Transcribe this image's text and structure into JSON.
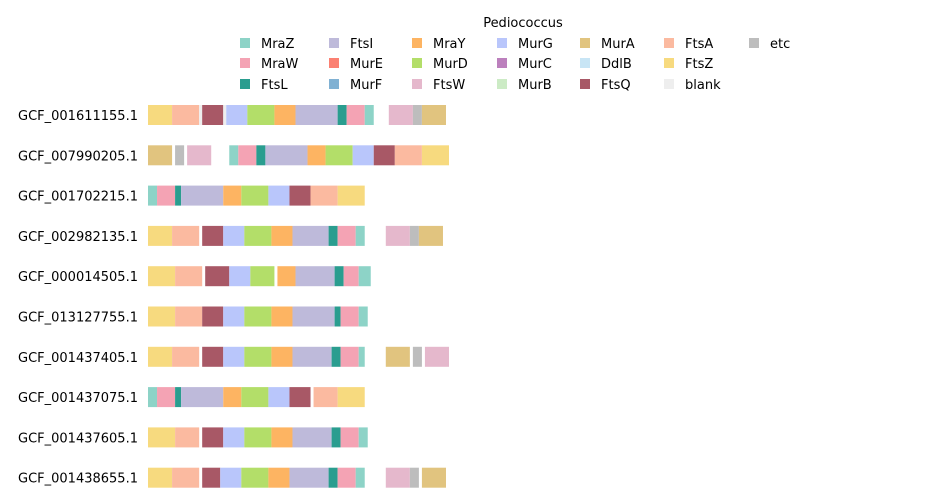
{
  "chart_data": {
    "type": "bar",
    "title": "",
    "xlabel": "",
    "ylabel": "",
    "xlim": [
      0,
      100
    ],
    "legend": {
      "title": "Pediococcus",
      "placement": "top",
      "columns": 7,
      "entries": [
        {
          "name": "MraZ",
          "color": "#8dd3c7"
        },
        {
          "name": "MraW",
          "color": "#f4a3b4"
        },
        {
          "name": "FtsL",
          "color": "#2a9d8f"
        },
        {
          "name": "FtsI",
          "color": "#bebada"
        },
        {
          "name": "MurE",
          "color": "#fb8072"
        },
        {
          "name": "MurF",
          "color": "#80b1d3"
        },
        {
          "name": "MraY",
          "color": "#fdb462"
        },
        {
          "name": "MurD",
          "color": "#b3de69"
        },
        {
          "name": "FtsW",
          "color": "#e5b8cc"
        },
        {
          "name": "MurG",
          "color": "#b9c6fb"
        },
        {
          "name": "MurC",
          "color": "#bc80bd"
        },
        {
          "name": "MurB",
          "color": "#ccebc5"
        },
        {
          "name": "MurA",
          "color": "#e1c47f"
        },
        {
          "name": "DdlB",
          "color": "#c8e5f5"
        },
        {
          "name": "FtsQ",
          "color": "#a85866"
        },
        {
          "name": "FtsA",
          "color": "#fbbaa0"
        },
        {
          "name": "FtsZ",
          "color": "#f7da7f"
        },
        {
          "name": "blank",
          "color": "#eeeeee"
        },
        {
          "name": "etc",
          "color": "#bdbdbd"
        }
      ]
    },
    "series": [
      {
        "name": "GCF_001611155.1",
        "segments": [
          {
            "gene": "FtsZ",
            "start": 0,
            "end": 8
          },
          {
            "gene": "FtsA",
            "start": 8,
            "end": 17
          },
          {
            "gene": "blank",
            "start": 17,
            "end": 18
          },
          {
            "gene": "FtsQ",
            "start": 18,
            "end": 25
          },
          {
            "gene": "blank",
            "start": 25,
            "end": 26
          },
          {
            "gene": "MurG",
            "start": 26,
            "end": 33
          },
          {
            "gene": "MurD",
            "start": 33,
            "end": 42
          },
          {
            "gene": "MraY",
            "start": 42,
            "end": 49
          },
          {
            "gene": "FtsI",
            "start": 49,
            "end": 63
          },
          {
            "gene": "FtsL",
            "start": 63,
            "end": 66
          },
          {
            "gene": "MraW",
            "start": 66,
            "end": 72
          },
          {
            "gene": "MraZ",
            "start": 72,
            "end": 75
          },
          {
            "gene": "FtsW",
            "start": 80,
            "end": 88
          },
          {
            "gene": "etc",
            "start": 88,
            "end": 91
          },
          {
            "gene": "MurA",
            "start": 91,
            "end": 99
          }
        ]
      },
      {
        "name": "GCF_007990205.1",
        "segments": [
          {
            "gene": "MurA",
            "start": 0,
            "end": 8
          },
          {
            "gene": "etc",
            "start": 9,
            "end": 12
          },
          {
            "gene": "FtsW",
            "start": 13,
            "end": 21
          },
          {
            "gene": "MraZ",
            "start": 27,
            "end": 30
          },
          {
            "gene": "MraW",
            "start": 30,
            "end": 36
          },
          {
            "gene": "FtsL",
            "start": 36,
            "end": 39
          },
          {
            "gene": "FtsI",
            "start": 39,
            "end": 53
          },
          {
            "gene": "MraY",
            "start": 53,
            "end": 59
          },
          {
            "gene": "MurD",
            "start": 59,
            "end": 68
          },
          {
            "gene": "MurG",
            "start": 68,
            "end": 75
          },
          {
            "gene": "FtsQ",
            "start": 75,
            "end": 82
          },
          {
            "gene": "FtsA",
            "start": 82,
            "end": 91
          },
          {
            "gene": "FtsZ",
            "start": 91,
            "end": 100
          }
        ]
      },
      {
        "name": "GCF_001702215.1",
        "segments": [
          {
            "gene": "MraZ",
            "start": 0,
            "end": 3
          },
          {
            "gene": "MraW",
            "start": 3,
            "end": 9
          },
          {
            "gene": "FtsL",
            "start": 9,
            "end": 11
          },
          {
            "gene": "FtsI",
            "start": 11,
            "end": 25
          },
          {
            "gene": "MraY",
            "start": 25,
            "end": 31
          },
          {
            "gene": "MurD",
            "start": 31,
            "end": 40
          },
          {
            "gene": "MurG",
            "start": 40,
            "end": 47
          },
          {
            "gene": "FtsQ",
            "start": 47,
            "end": 54
          },
          {
            "gene": "FtsA",
            "start": 54,
            "end": 63
          },
          {
            "gene": "FtsZ",
            "start": 63,
            "end": 72
          }
        ]
      },
      {
        "name": "GCF_002982135.1",
        "segments": [
          {
            "gene": "FtsZ",
            "start": 0,
            "end": 8
          },
          {
            "gene": "FtsA",
            "start": 8,
            "end": 17
          },
          {
            "gene": "FtsQ",
            "start": 18,
            "end": 25
          },
          {
            "gene": "MurG",
            "start": 25,
            "end": 32
          },
          {
            "gene": "MurD",
            "start": 32,
            "end": 41
          },
          {
            "gene": "MraY",
            "start": 41,
            "end": 48
          },
          {
            "gene": "FtsI",
            "start": 48,
            "end": 60
          },
          {
            "gene": "FtsL",
            "start": 60,
            "end": 63
          },
          {
            "gene": "MraW",
            "start": 63,
            "end": 69
          },
          {
            "gene": "MraZ",
            "start": 69,
            "end": 72
          },
          {
            "gene": "FtsW",
            "start": 79,
            "end": 87
          },
          {
            "gene": "etc",
            "start": 87,
            "end": 90
          },
          {
            "gene": "MurA",
            "start": 90,
            "end": 98
          }
        ]
      },
      {
        "name": "GCF_000014505.1",
        "segments": [
          {
            "gene": "FtsZ",
            "start": 0,
            "end": 9
          },
          {
            "gene": "FtsA",
            "start": 9,
            "end": 18
          },
          {
            "gene": "FtsQ",
            "start": 19,
            "end": 27
          },
          {
            "gene": "MurG",
            "start": 27,
            "end": 34
          },
          {
            "gene": "MurD",
            "start": 34,
            "end": 42
          },
          {
            "gene": "MraY",
            "start": 43,
            "end": 49
          },
          {
            "gene": "FtsI",
            "start": 49,
            "end": 62
          },
          {
            "gene": "FtsL",
            "start": 62,
            "end": 65
          },
          {
            "gene": "MraW",
            "start": 65,
            "end": 70
          },
          {
            "gene": "MraZ",
            "start": 70,
            "end": 74
          }
        ]
      },
      {
        "name": "GCF_013127755.1",
        "segments": [
          {
            "gene": "FtsZ",
            "start": 0,
            "end": 9
          },
          {
            "gene": "FtsA",
            "start": 9,
            "end": 18
          },
          {
            "gene": "FtsQ",
            "start": 18,
            "end": 25
          },
          {
            "gene": "MurG",
            "start": 25,
            "end": 32
          },
          {
            "gene": "MurD",
            "start": 32,
            "end": 41
          },
          {
            "gene": "MraY",
            "start": 41,
            "end": 48
          },
          {
            "gene": "FtsI",
            "start": 48,
            "end": 62
          },
          {
            "gene": "FtsL",
            "start": 62,
            "end": 64
          },
          {
            "gene": "MraW",
            "start": 64,
            "end": 70
          },
          {
            "gene": "MraZ",
            "start": 70,
            "end": 73
          }
        ]
      },
      {
        "name": "GCF_001437405.1",
        "segments": [
          {
            "gene": "FtsZ",
            "start": 0,
            "end": 8
          },
          {
            "gene": "FtsA",
            "start": 8,
            "end": 17
          },
          {
            "gene": "FtsQ",
            "start": 18,
            "end": 25
          },
          {
            "gene": "MurG",
            "start": 25,
            "end": 32
          },
          {
            "gene": "MurD",
            "start": 32,
            "end": 41
          },
          {
            "gene": "MraY",
            "start": 41,
            "end": 48
          },
          {
            "gene": "FtsI",
            "start": 48,
            "end": 61
          },
          {
            "gene": "FtsL",
            "start": 61,
            "end": 64
          },
          {
            "gene": "MraW",
            "start": 64,
            "end": 70
          },
          {
            "gene": "MraZ",
            "start": 70,
            "end": 72
          },
          {
            "gene": "MurA",
            "start": 79,
            "end": 87
          },
          {
            "gene": "etc",
            "start": 88,
            "end": 91
          },
          {
            "gene": "FtsW",
            "start": 92,
            "end": 100
          }
        ]
      },
      {
        "name": "GCF_001437075.1",
        "segments": [
          {
            "gene": "MraZ",
            "start": 0,
            "end": 3
          },
          {
            "gene": "MraW",
            "start": 3,
            "end": 9
          },
          {
            "gene": "FtsL",
            "start": 9,
            "end": 11
          },
          {
            "gene": "FtsI",
            "start": 11,
            "end": 25
          },
          {
            "gene": "MraY",
            "start": 25,
            "end": 31
          },
          {
            "gene": "MurD",
            "start": 31,
            "end": 40
          },
          {
            "gene": "MurG",
            "start": 40,
            "end": 47
          },
          {
            "gene": "FtsQ",
            "start": 47,
            "end": 54
          },
          {
            "gene": "FtsA",
            "start": 55,
            "end": 63
          },
          {
            "gene": "FtsZ",
            "start": 63,
            "end": 72
          }
        ]
      },
      {
        "name": "GCF_001437605.1",
        "segments": [
          {
            "gene": "FtsZ",
            "start": 0,
            "end": 9
          },
          {
            "gene": "FtsA",
            "start": 9,
            "end": 17
          },
          {
            "gene": "FtsQ",
            "start": 18,
            "end": 25
          },
          {
            "gene": "MurG",
            "start": 25,
            "end": 32
          },
          {
            "gene": "MurD",
            "start": 32,
            "end": 41
          },
          {
            "gene": "MraY",
            "start": 41,
            "end": 48
          },
          {
            "gene": "FtsI",
            "start": 48,
            "end": 61
          },
          {
            "gene": "FtsL",
            "start": 61,
            "end": 64
          },
          {
            "gene": "MraW",
            "start": 64,
            "end": 70
          },
          {
            "gene": "MraZ",
            "start": 70,
            "end": 73
          }
        ]
      },
      {
        "name": "GCF_001438655.1",
        "segments": [
          {
            "gene": "FtsZ",
            "start": 0,
            "end": 8
          },
          {
            "gene": "FtsA",
            "start": 8,
            "end": 17
          },
          {
            "gene": "FtsQ",
            "start": 18,
            "end": 24
          },
          {
            "gene": "MurG",
            "start": 24,
            "end": 31
          },
          {
            "gene": "MurD",
            "start": 31,
            "end": 40
          },
          {
            "gene": "MraY",
            "start": 40,
            "end": 47
          },
          {
            "gene": "FtsI",
            "start": 47,
            "end": 60
          },
          {
            "gene": "FtsL",
            "start": 60,
            "end": 63
          },
          {
            "gene": "MraW",
            "start": 63,
            "end": 69
          },
          {
            "gene": "MraZ",
            "start": 69,
            "end": 72
          },
          {
            "gene": "FtsW",
            "start": 79,
            "end": 87
          },
          {
            "gene": "etc",
            "start": 87,
            "end": 90
          },
          {
            "gene": "MurA",
            "start": 91,
            "end": 99
          }
        ]
      }
    ]
  }
}
